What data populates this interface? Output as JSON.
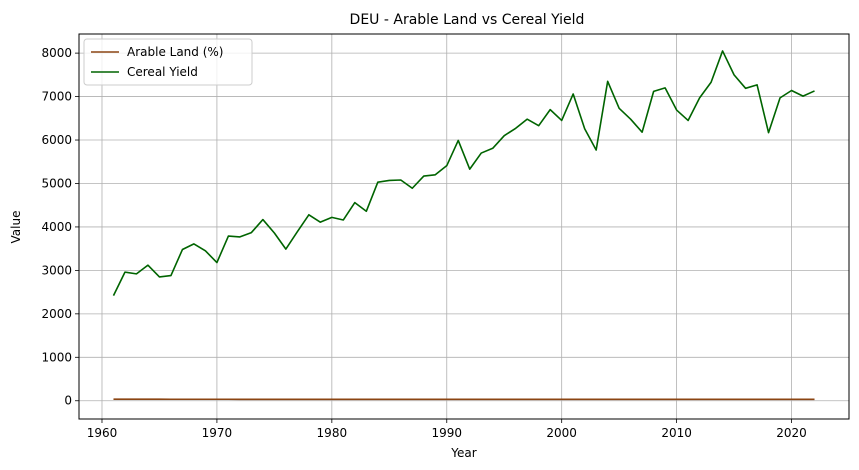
{
  "chart_data": {
    "type": "line",
    "title": "DEU - Arable Land vs Cereal Yield",
    "xlabel": "Year",
    "ylabel": "Value",
    "xlim": [
      1958,
      2025
    ],
    "ylim": [
      -420,
      8440
    ],
    "xticks": [
      1960,
      1970,
      1980,
      1990,
      2000,
      2010,
      2020
    ],
    "yticks": [
      0,
      1000,
      2000,
      3000,
      4000,
      5000,
      6000,
      7000,
      8000
    ],
    "grid": true,
    "legend_position": "top-left",
    "x": [
      1961,
      1962,
      1963,
      1964,
      1965,
      1966,
      1967,
      1968,
      1969,
      1970,
      1971,
      1972,
      1973,
      1974,
      1975,
      1976,
      1977,
      1978,
      1979,
      1980,
      1981,
      1982,
      1983,
      1984,
      1985,
      1986,
      1987,
      1988,
      1989,
      1990,
      1991,
      1992,
      1993,
      1994,
      1995,
      1996,
      1997,
      1998,
      1999,
      2000,
      2001,
      2002,
      2003,
      2004,
      2005,
      2006,
      2007,
      2008,
      2009,
      2010,
      2011,
      2012,
      2013,
      2014,
      2015,
      2016,
      2017,
      2018,
      2019,
      2020,
      2021,
      2022
    ],
    "series": [
      {
        "name": "Arable Land (%)",
        "color": "#8b4513",
        "values": [
          35,
          35,
          35,
          35,
          34.9,
          34.8,
          34.7,
          34.6,
          34.5,
          34.3,
          34.2,
          34.1,
          34,
          33.9,
          33.8,
          33.7,
          33.6,
          33.6,
          33.5,
          33.5,
          33.4,
          33.4,
          33.3,
          33.3,
          33.3,
          33.3,
          33.3,
          33.2,
          33.2,
          33.2,
          33.4,
          33.6,
          33.6,
          33.7,
          33.7,
          33.8,
          33.8,
          33.8,
          33.9,
          33.9,
          33.9,
          33.9,
          33.9,
          33.9,
          33.9,
          33.9,
          33.9,
          34,
          34.1,
          34,
          34,
          34,
          34,
          34,
          34,
          34,
          33.9,
          33.9,
          33.9,
          33.9,
          33.9,
          33.9
        ]
      },
      {
        "name": "Cereal Yield",
        "color": "#006400",
        "values": [
          2420,
          2960,
          2920,
          3120,
          2850,
          2880,
          3480,
          3610,
          3450,
          3180,
          3790,
          3770,
          3870,
          4170,
          3860,
          3490,
          3890,
          4280,
          4110,
          4220,
          4160,
          4560,
          4360,
          5030,
          5070,
          5080,
          4890,
          5170,
          5200,
          5410,
          5990,
          5330,
          5700,
          5810,
          6100,
          6270,
          6480,
          6330,
          6700,
          6450,
          7060,
          6260,
          5770,
          7350,
          6730,
          6480,
          6180,
          7120,
          7200,
          6690,
          6450,
          6970,
          7330,
          8050,
          7500,
          7190,
          7270,
          6170,
          6970,
          7140,
          7010,
          7130
        ]
      }
    ]
  }
}
